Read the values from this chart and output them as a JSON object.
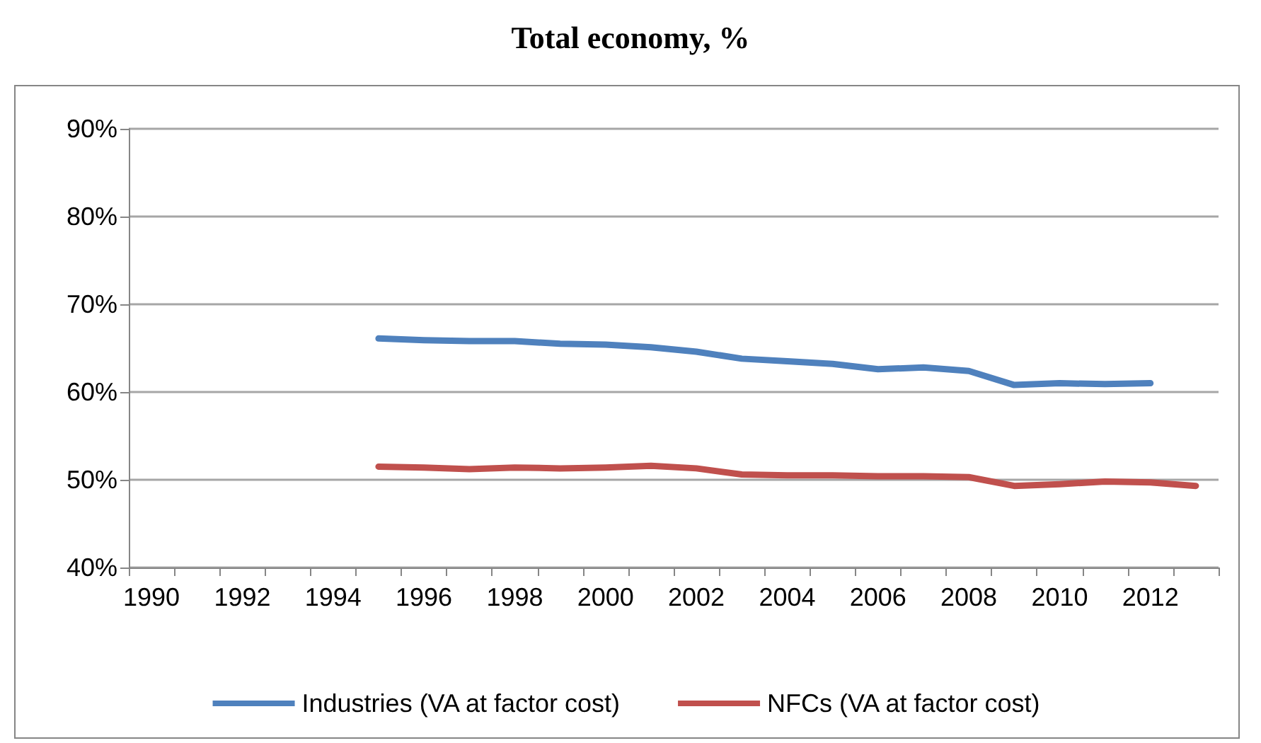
{
  "chart_data": {
    "type": "line",
    "title": "Total economy, %",
    "categories": [
      "1990",
      null,
      "1992",
      null,
      "1994",
      null,
      "1996",
      null,
      "1998",
      null,
      "2000",
      null,
      "2002",
      null,
      "2004",
      null,
      "2006",
      null,
      "2008",
      null,
      "2010",
      null,
      "2012",
      null
    ],
    "series": [
      {
        "name": "Industries (VA at factor cost)",
        "color": "#4f81bd",
        "values": [
          null,
          null,
          null,
          null,
          null,
          66.1,
          65.9,
          65.8,
          65.8,
          65.5,
          65.4,
          65.1,
          64.6,
          63.8,
          63.5,
          63.2,
          62.6,
          62.8,
          62.4,
          60.8,
          61.0,
          60.9,
          61.0,
          null
        ]
      },
      {
        "name": "NFCs (VA at factor cost)",
        "color": "#c0504d",
        "values": [
          null,
          null,
          null,
          null,
          null,
          51.5,
          51.4,
          51.2,
          51.4,
          51.3,
          51.4,
          51.6,
          51.3,
          50.6,
          50.5,
          50.5,
          50.4,
          50.4,
          50.3,
          49.3,
          49.5,
          49.8,
          49.7,
          49.3
        ]
      }
    ],
    "ylim": [
      40,
      90
    ],
    "yticks": [
      {
        "value": 40,
        "label": "40%"
      },
      {
        "value": 50,
        "label": "50%"
      },
      {
        "value": 60,
        "label": "60%"
      },
      {
        "value": 70,
        "label": "70%"
      },
      {
        "value": 80,
        "label": "80%"
      },
      {
        "value": 90,
        "label": "90%"
      }
    ],
    "grid": "y",
    "legend": "bottom",
    "marker": "none",
    "line_style": "solid"
  }
}
